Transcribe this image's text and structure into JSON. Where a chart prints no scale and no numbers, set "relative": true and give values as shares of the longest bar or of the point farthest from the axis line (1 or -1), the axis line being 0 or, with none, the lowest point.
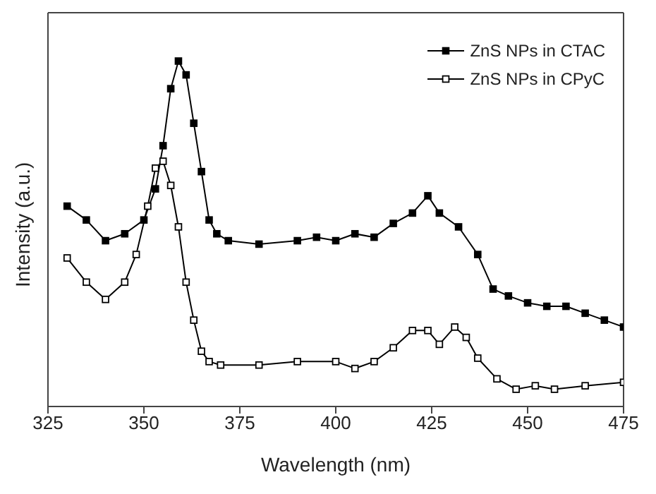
{
  "chart_data": {
    "type": "line",
    "xlabel": "Wavelength (nm)",
    "ylabel": "Intensity (a.u.)",
    "relative": true,
    "xlim": [
      325,
      475
    ],
    "xticks": [
      325,
      350,
      375,
      400,
      425,
      450,
      475
    ],
    "legend": "top right",
    "series": [
      {
        "name": "ZnS NPs in CTAC",
        "color": "#000000",
        "marker": "square",
        "x": [
          330,
          335,
          340,
          345,
          350,
          353,
          355,
          357,
          359,
          361,
          363,
          365,
          367,
          369,
          372,
          380,
          390,
          395,
          400,
          405,
          410,
          415,
          420,
          424,
          427,
          432,
          437,
          441,
          445,
          450,
          455,
          460,
          465,
          470,
          475
        ],
        "values": [
          0.58,
          0.54,
          0.48,
          0.5,
          0.54,
          0.63,
          0.755,
          0.92,
          1.0,
          0.96,
          0.82,
          0.68,
          0.54,
          0.5,
          0.48,
          0.47,
          0.48,
          0.49,
          0.48,
          0.5,
          0.49,
          0.53,
          0.56,
          0.61,
          0.56,
          0.52,
          0.44,
          0.34,
          0.32,
          0.3,
          0.29,
          0.29,
          0.27,
          0.25,
          0.23
        ]
      },
      {
        "name": "ZnS NPs in CPyC",
        "color": "#000000",
        "marker": "square-open",
        "x": [
          330,
          335,
          340,
          345,
          348,
          351,
          353,
          355,
          357,
          359,
          361,
          363,
          365,
          367,
          370,
          380,
          390,
          400,
          405,
          410,
          415,
          420,
          424,
          427,
          431,
          434,
          437,
          442,
          447,
          452,
          457,
          465,
          475
        ],
        "values": [
          0.43,
          0.36,
          0.31,
          0.36,
          0.44,
          0.58,
          0.69,
          0.71,
          0.64,
          0.52,
          0.36,
          0.25,
          0.16,
          0.13,
          0.12,
          0.12,
          0.13,
          0.13,
          0.11,
          0.13,
          0.17,
          0.22,
          0.22,
          0.18,
          0.23,
          0.2,
          0.14,
          0.08,
          0.05,
          0.06,
          0.05,
          0.06,
          0.07
        ]
      }
    ]
  }
}
